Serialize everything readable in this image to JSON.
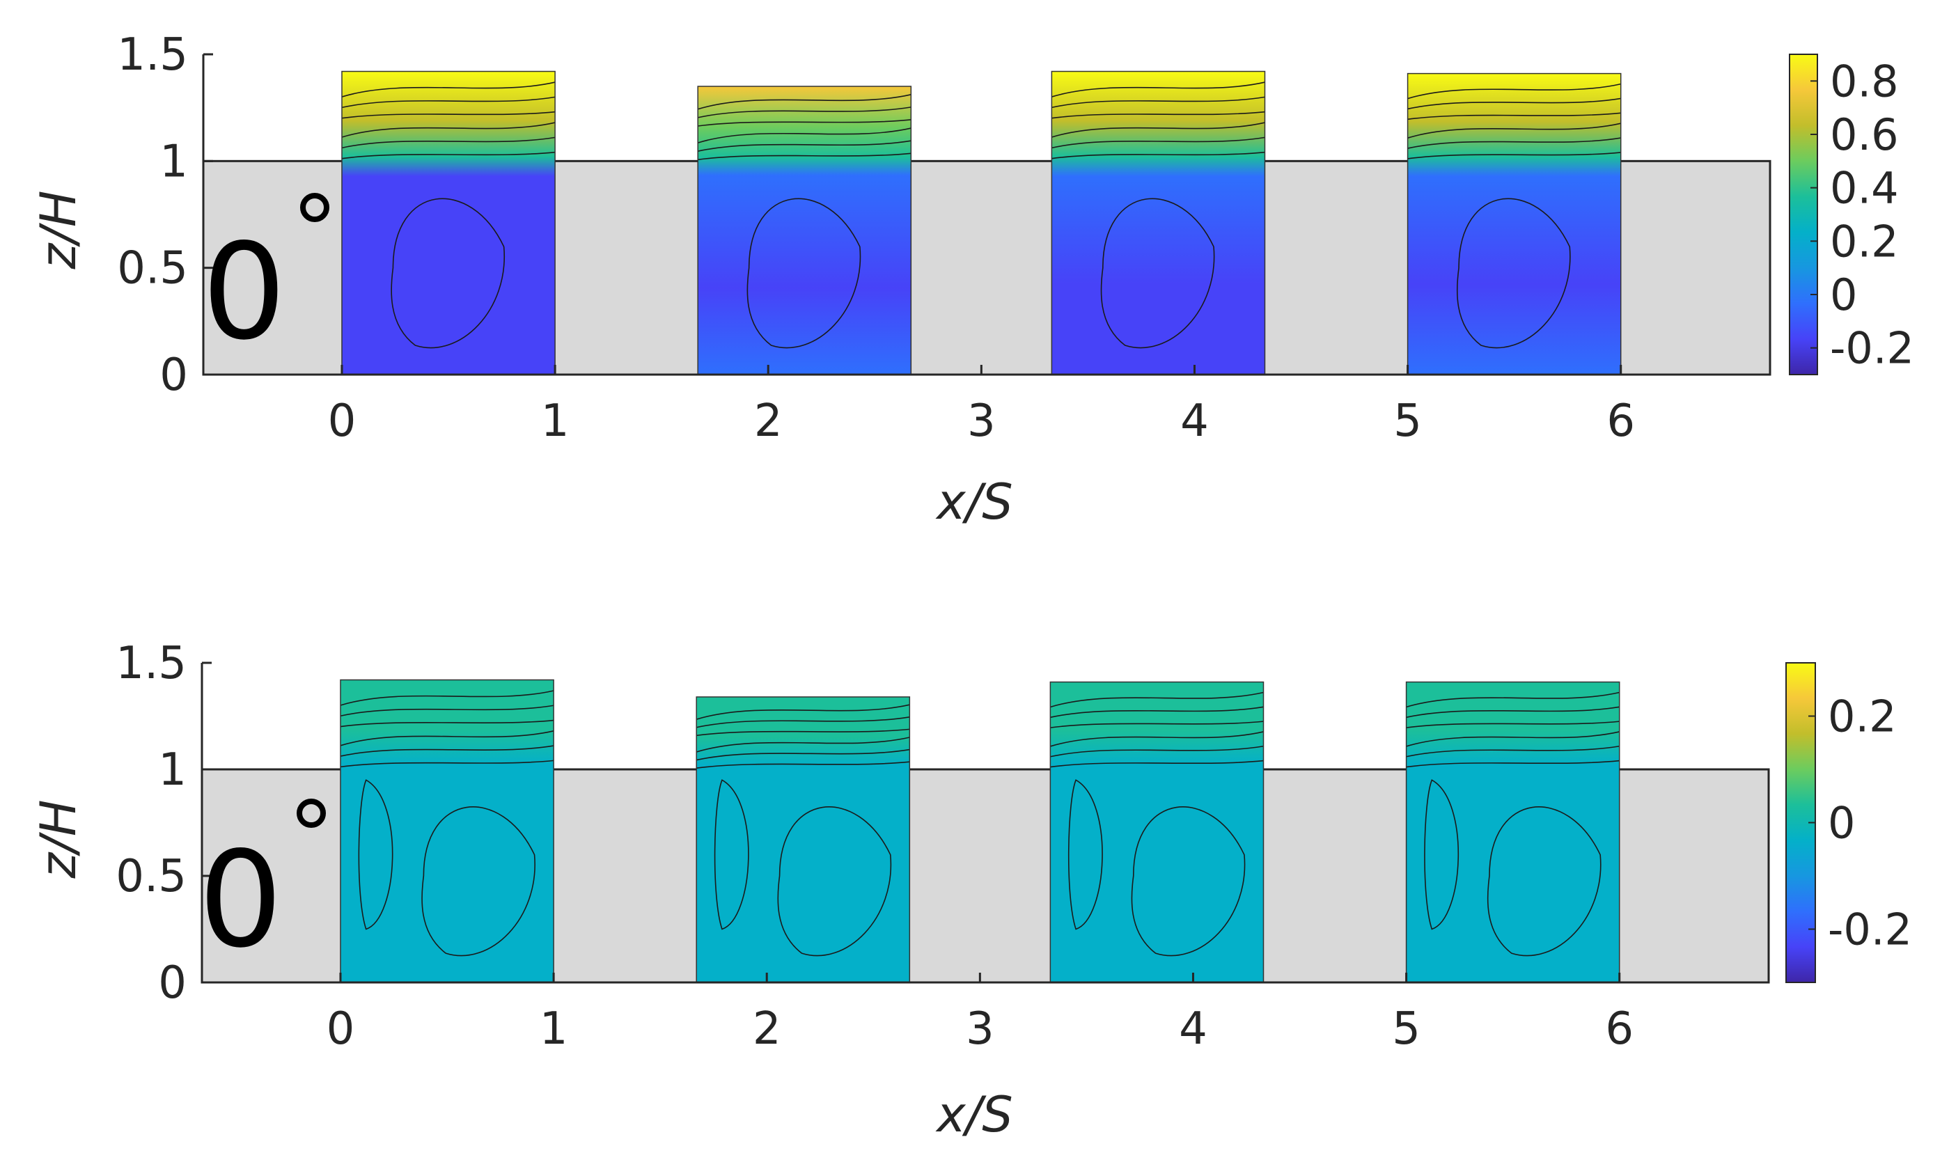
{
  "chart_data": [
    {
      "type": "heatmap",
      "panel": "top",
      "xlabel": "x/S",
      "ylabel": "z/H",
      "xticks": [
        0,
        1,
        2,
        3,
        4,
        5,
        6
      ],
      "yticks": [
        0,
        0.5,
        1,
        1.5
      ],
      "xlim": [
        -0.65,
        6.7
      ],
      "ylim": [
        0,
        1.5
      ],
      "annotation": "0",
      "building_height": 1,
      "colorbar": {
        "range": [
          -0.3,
          0.9
        ],
        "ticks": [
          -0.2,
          0,
          0.2,
          0.4,
          0.6,
          0.8
        ],
        "tick_labels": [
          "-0.2",
          "0",
          "0.2",
          "0.4",
          "0.6",
          "0.8"
        ]
      },
      "windows": [
        {
          "x": [
            0.0,
            1.0
          ],
          "top": 1.42,
          "interior_value": -0.22,
          "above_value": 0.85
        },
        {
          "x": [
            1.67,
            2.67
          ],
          "top": 1.35,
          "interior_value": -0.12,
          "above_value": 0.72
        },
        {
          "x": [
            3.33,
            4.33
          ],
          "top": 1.42,
          "interior_value": -0.15,
          "above_value": 0.85
        },
        {
          "x": [
            5.0,
            6.0
          ],
          "top": 1.41,
          "interior_value": -0.12,
          "above_value": 0.85
        }
      ]
    },
    {
      "type": "heatmap",
      "panel": "bottom",
      "xlabel": "x/S",
      "ylabel": "z/H",
      "xticks": [
        0,
        1,
        2,
        3,
        4,
        5,
        6
      ],
      "yticks": [
        0,
        0.5,
        1,
        1.5
      ],
      "xlim": [
        -0.65,
        6.7
      ],
      "ylim": [
        0,
        1.5
      ],
      "annotation": "0",
      "building_height": 1,
      "colorbar": {
        "range": [
          -0.3,
          0.3
        ],
        "ticks": [
          -0.2,
          0,
          0.2
        ],
        "tick_labels": [
          "-0.2",
          "0",
          "0.2"
        ]
      },
      "windows": [
        {
          "x": [
            0.0,
            1.0
          ],
          "top": 1.42,
          "interior_value": -0.05,
          "above_value": 0.02
        },
        {
          "x": [
            1.67,
            2.67
          ],
          "top": 1.34,
          "interior_value": -0.02,
          "above_value": 0.0
        },
        {
          "x": [
            3.33,
            4.33
          ],
          "top": 1.41,
          "interior_value": -0.03,
          "above_value": 0.02
        },
        {
          "x": [
            5.0,
            6.0
          ],
          "top": 1.41,
          "interior_value": -0.03,
          "above_value": 0.0
        }
      ]
    }
  ],
  "colors": {
    "building": "#d9d9d9",
    "axis": "#262626",
    "contour": "#1a1a1a",
    "colormap": [
      "#3e26a8",
      "#4743f8",
      "#2f6ffd",
      "#1797e0",
      "#04b0c9",
      "#1cbf9a",
      "#6ccc5e",
      "#c2be2b",
      "#f6c83a",
      "#f9fb15"
    ]
  }
}
